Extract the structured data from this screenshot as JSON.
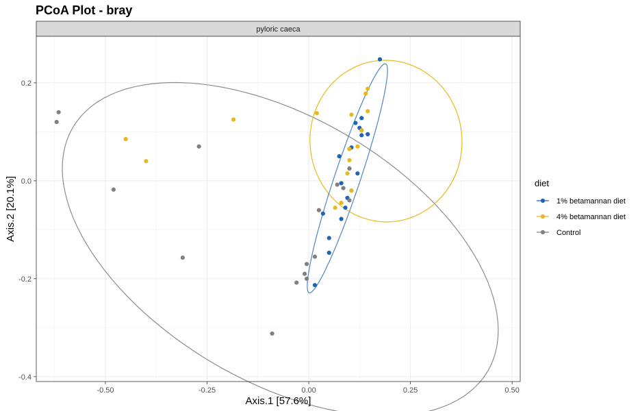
{
  "chart_data": {
    "type": "scatter",
    "title": "PCoA Plot - bray",
    "facet_label": "pyloric caeca",
    "xlabel": "Axis.1   [57.6%]",
    "ylabel": "Axis.2   [20.1%]",
    "xlim": [
      -0.67,
      0.52
    ],
    "ylim": [
      -0.41,
      0.295
    ],
    "x_ticks": [
      -0.5,
      -0.25,
      0.0,
      0.25,
      0.5
    ],
    "x_tick_labels": [
      "-0.50",
      "-0.25",
      "0.00",
      "0.25",
      "0.50"
    ],
    "y_ticks": [
      -0.4,
      -0.2,
      0.0,
      0.2
    ],
    "y_tick_labels": [
      "-0.4",
      "-0.2",
      "0.0",
      "0.2"
    ],
    "grid": true,
    "legend": {
      "title": "diet",
      "position": "right"
    },
    "series": [
      {
        "name": "1% betamannan diet",
        "color": "#1F65B5",
        "points": [
          [
            0.175,
            0.248
          ],
          [
            0.13,
            0.128
          ],
          [
            0.125,
            0.108
          ],
          [
            0.115,
            0.118
          ],
          [
            0.13,
            0.103
          ],
          [
            0.145,
            0.095
          ],
          [
            0.13,
            0.093
          ],
          [
            0.105,
            0.068
          ],
          [
            0.1,
            0.065
          ],
          [
            0.075,
            0.05
          ],
          [
            0.12,
            0.015
          ],
          [
            0.08,
            -0.005
          ],
          [
            0.105,
            -0.02
          ],
          [
            0.095,
            -0.035
          ],
          [
            0.09,
            -0.055
          ],
          [
            0.035,
            -0.067
          ],
          [
            0.08,
            -0.078
          ],
          [
            0.05,
            -0.117
          ],
          [
            0.05,
            -0.147
          ],
          [
            0.015,
            -0.213
          ]
        ]
      },
      {
        "name": "4% betamannan diet",
        "color": "#E8B91C",
        "points": [
          [
            0.145,
            0.188
          ],
          [
            0.14,
            0.178
          ],
          [
            0.145,
            0.142
          ],
          [
            0.02,
            0.138
          ],
          [
            0.105,
            0.135
          ],
          [
            -0.185,
            0.125
          ],
          [
            0.13,
            0.103
          ],
          [
            -0.45,
            0.085
          ],
          [
            0.12,
            0.07
          ],
          [
            0.1,
            0.065
          ],
          [
            -0.4,
            0.04
          ],
          [
            0.1,
            0.042
          ],
          [
            0.1,
            0.025
          ],
          [
            0.095,
            0.015
          ],
          [
            0.105,
            -0.02
          ],
          [
            0.08,
            -0.045
          ],
          [
            0.065,
            -0.055
          ]
        ]
      },
      {
        "name": "Control",
        "color": "#808080",
        "points": [
          [
            -0.615,
            0.14
          ],
          [
            -0.62,
            0.12
          ],
          [
            -0.27,
            0.07
          ],
          [
            -0.48,
            -0.018
          ],
          [
            0.1,
            0.025
          ],
          [
            0.07,
            -0.008
          ],
          [
            0.085,
            -0.015
          ],
          [
            0.1,
            -0.04
          ],
          [
            0.025,
            -0.06
          ],
          [
            0.015,
            -0.155
          ],
          [
            -0.005,
            -0.17
          ],
          [
            -0.31,
            -0.157
          ],
          [
            -0.01,
            -0.19
          ],
          [
            -0.005,
            -0.2
          ],
          [
            -0.03,
            -0.208
          ],
          [
            -0.09,
            -0.312
          ]
        ]
      }
    ],
    "ellipses": [
      {
        "series": "Control",
        "color": "#8C8C8C",
        "center": [
          -0.07,
          -0.14
        ],
        "semi_axes": [
          0.57,
          0.28
        ],
        "angle_deg": -23
      },
      {
        "series": "4% betamannan diet",
        "color": "#E8B91C",
        "center": [
          0.19,
          0.081
        ],
        "semi_axes": [
          0.187,
          0.165
        ],
        "angle_deg": -2
      },
      {
        "series": "1% betamannan diet",
        "color": "#4A86C5",
        "center": [
          0.095,
          0.005
        ],
        "semi_axes": [
          0.252,
          0.031
        ],
        "angle_deg": 68
      }
    ]
  }
}
